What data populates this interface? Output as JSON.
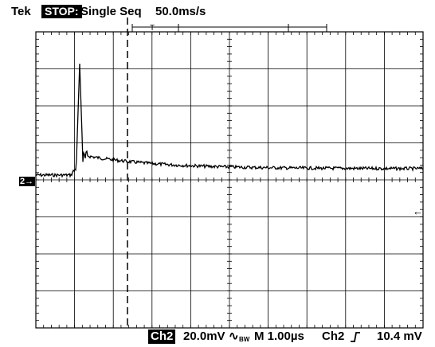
{
  "header": {
    "brand": "Tek",
    "run_state": "STOP:",
    "acquisition_mode": "Single Seq",
    "timebase": "50.0ms/s"
  },
  "footer": {
    "channel": "Ch2",
    "volts_per_div": "20.0mV",
    "coupling_icon": "ac-coupling-icon",
    "bandwidth_limit": "BW",
    "horizontal": "M 1.00µs",
    "trigger_source": "Ch2",
    "trigger_slope_icon": "rising-edge-icon",
    "trigger_level": "10.4 mV"
  },
  "markers": {
    "channel_marker_number": "2",
    "channel_marker_arrow": "→",
    "trigger_level_arrow": "←"
  },
  "display": {
    "grid": true,
    "divisions_x": 10,
    "divisions_y": 8,
    "background": "#ffffff",
    "trace_color": "#000000"
  }
}
